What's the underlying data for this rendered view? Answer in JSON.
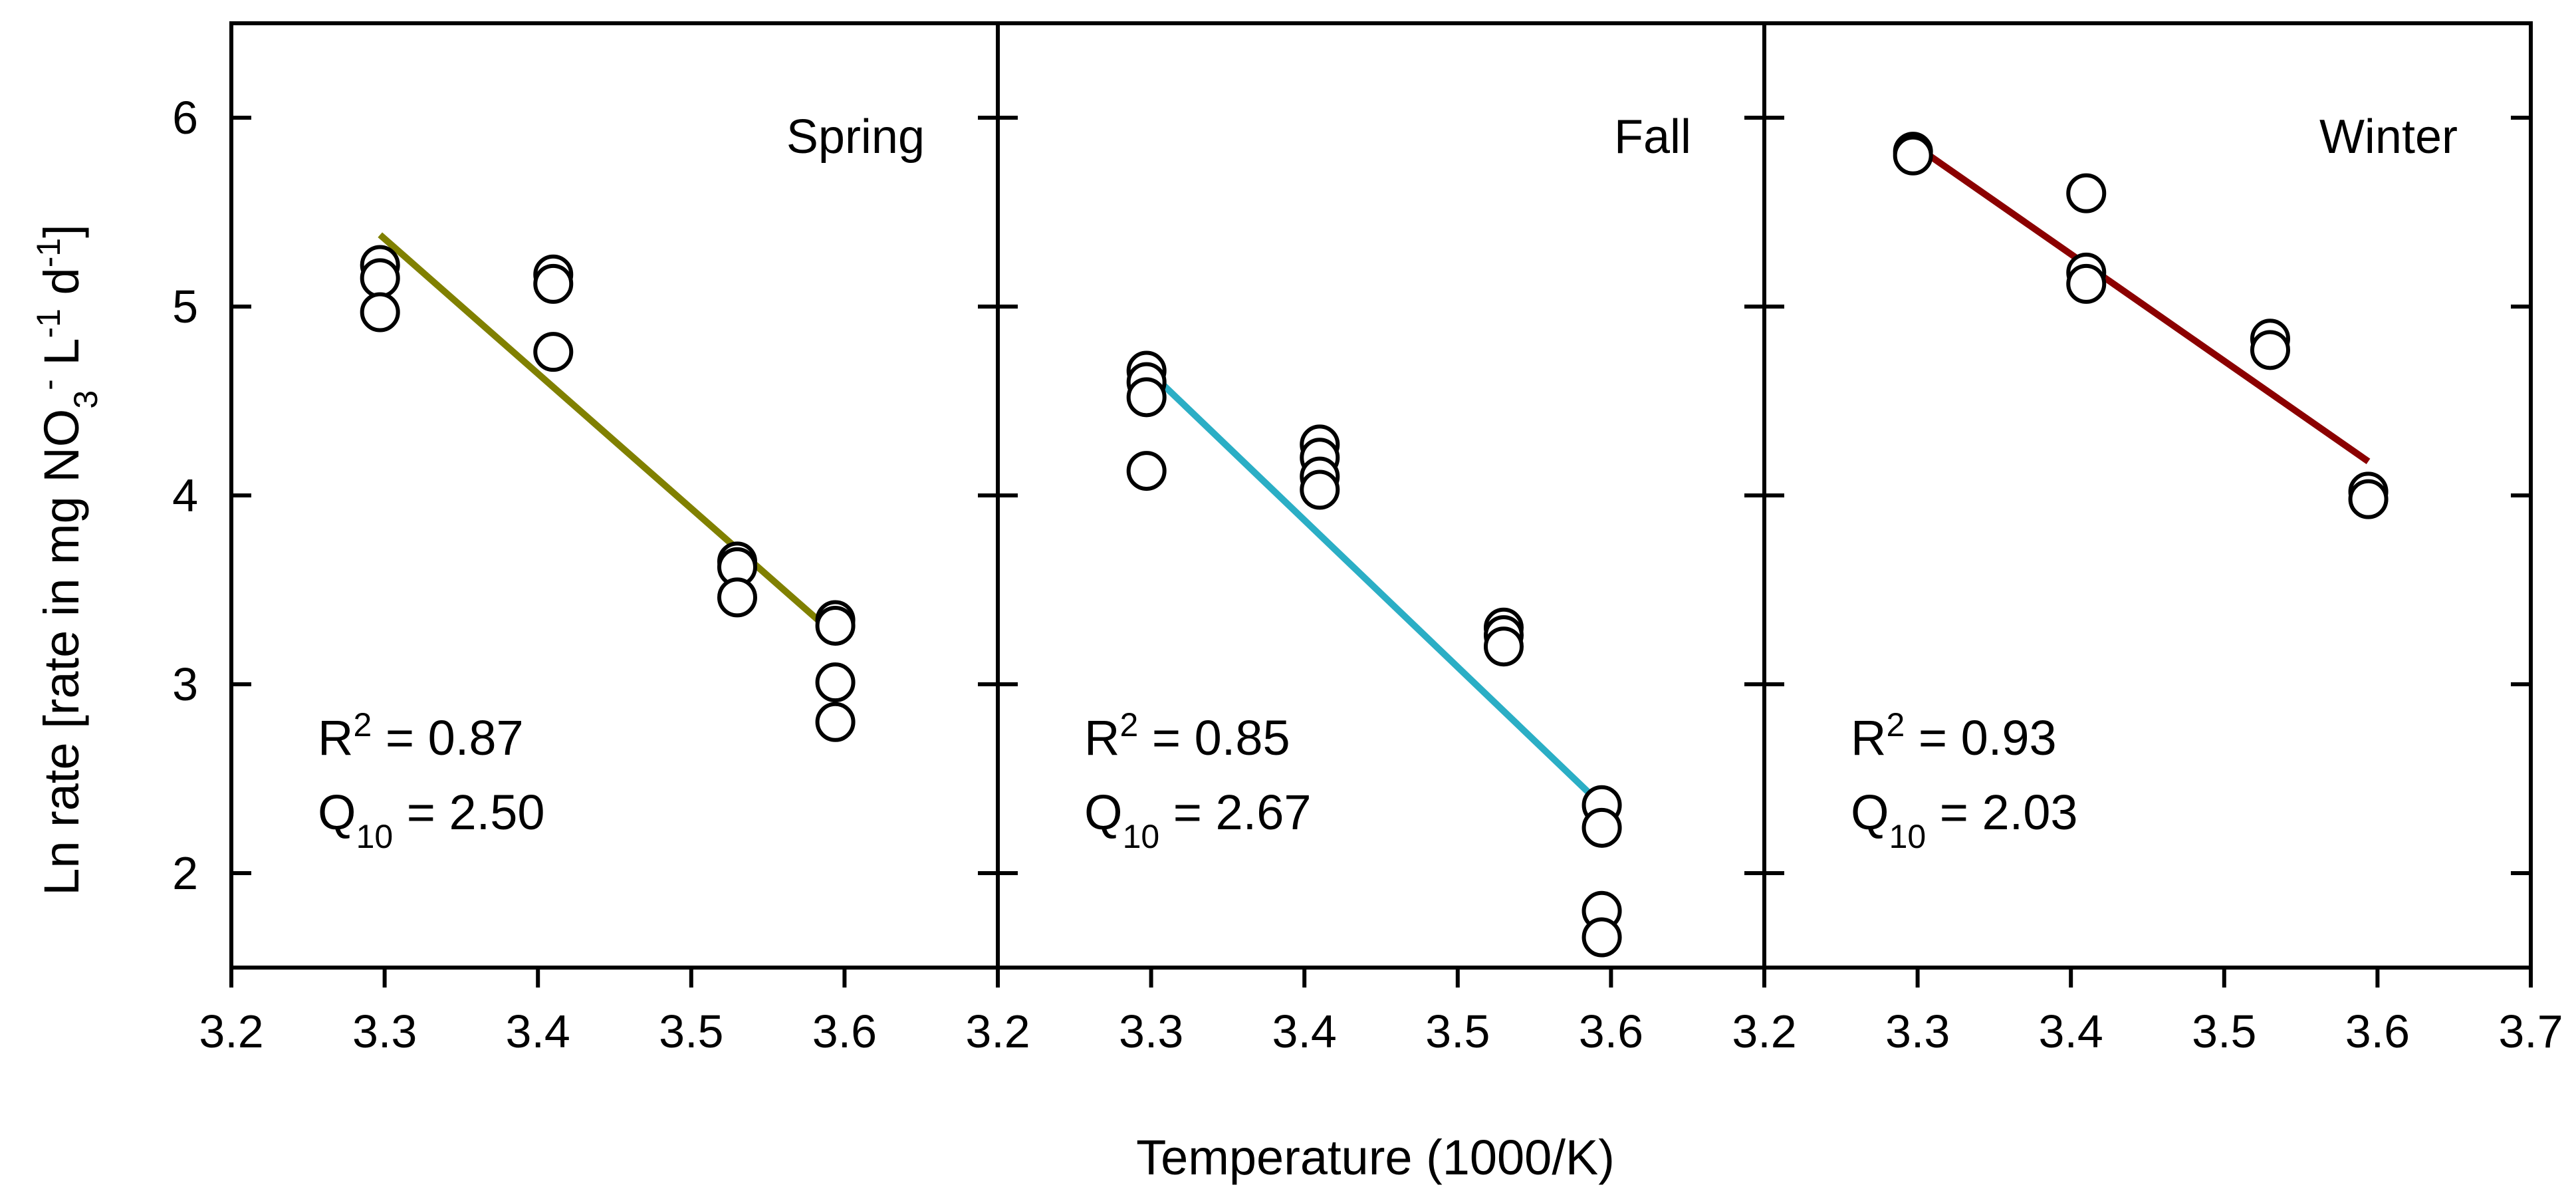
{
  "chart_data": {
    "type": "scatter",
    "title": "",
    "xlabel": "Temperature (1000/K)",
    "ylabel": "Ln rate [rate in mg NO3- L-1 d-1]",
    "ylabel_parts": {
      "prefix": "Ln rate [rate in mg NO",
      "sub3": "3",
      "sup_minus": "-",
      "mid": " L",
      "sup_l": "-1",
      "d": " d",
      "sup_d": "-1",
      "end": "]"
    },
    "ylim": [
      1.5,
      6.5
    ],
    "yticks": [
      2,
      3,
      4,
      5,
      6
    ],
    "panels": [
      {
        "label": "Spring",
        "xlim": [
          3.2,
          3.7
        ],
        "xticks": [
          "3.2",
          "3.3",
          "3.4",
          "3.5",
          "3.6"
        ],
        "color": "#808000",
        "points": [
          [
            3.297,
            5.22
          ],
          [
            3.297,
            5.15
          ],
          [
            3.297,
            4.97
          ],
          [
            3.41,
            5.17
          ],
          [
            3.41,
            5.12
          ],
          [
            3.41,
            4.76
          ],
          [
            3.53,
            3.65
          ],
          [
            3.53,
            3.62
          ],
          [
            3.53,
            3.46
          ],
          [
            3.594,
            3.34
          ],
          [
            3.594,
            3.31
          ],
          [
            3.594,
            3.01
          ],
          [
            3.594,
            2.8
          ]
        ],
        "fit": [
          [
            3.297,
            5.38
          ],
          [
            3.594,
            3.26
          ]
        ],
        "r2_label": "R",
        "r2_sup": "2",
        "r2_value": " = 0.87",
        "q_label": "Q",
        "q_sub": "10",
        "q_value": " = 2.50"
      },
      {
        "label": "Fall",
        "xlim": [
          3.2,
          3.7
        ],
        "xticks": [
          "3.2",
          "3.3",
          "3.4",
          "3.5",
          "3.6"
        ],
        "color": "#2BAEC5",
        "points": [
          [
            3.297,
            4.66
          ],
          [
            3.297,
            4.6
          ],
          [
            3.297,
            4.52
          ],
          [
            3.297,
            4.13
          ],
          [
            3.41,
            4.27
          ],
          [
            3.41,
            4.2
          ],
          [
            3.41,
            4.1
          ],
          [
            3.41,
            4.03
          ],
          [
            3.53,
            3.3
          ],
          [
            3.53,
            3.26
          ],
          [
            3.53,
            3.2
          ],
          [
            3.594,
            2.36
          ],
          [
            3.594,
            2.24
          ],
          [
            3.594,
            1.8
          ],
          [
            3.594,
            1.66
          ]
        ],
        "fit": [
          [
            3.297,
            4.67
          ],
          [
            3.594,
            2.36
          ]
        ],
        "r2_label": "R",
        "r2_sup": "2",
        "r2_value": " = 0.85",
        "q_label": "Q",
        "q_sub": "10",
        "q_value": " = 2.67"
      },
      {
        "label": "Winter",
        "xlim": [
          3.2,
          3.7
        ],
        "xticks": [
          "3.2",
          "3.3",
          "3.4",
          "3.5",
          "3.6",
          "3.7"
        ],
        "color": "#8B0000",
        "points": [
          [
            3.297,
            5.82
          ],
          [
            3.297,
            5.8
          ],
          [
            3.41,
            5.6
          ],
          [
            3.41,
            5.18
          ],
          [
            3.41,
            5.12
          ],
          [
            3.53,
            4.83
          ],
          [
            3.53,
            4.77
          ],
          [
            3.594,
            4.02
          ],
          [
            3.594,
            3.98
          ]
        ],
        "fit": [
          [
            3.297,
            5.86
          ],
          [
            3.594,
            4.18
          ]
        ],
        "r2_label": "R",
        "r2_sup": "2",
        "r2_value": " = 0.93",
        "q_label": "Q",
        "q_sub": "10",
        "q_value": " = 2.03"
      }
    ]
  }
}
